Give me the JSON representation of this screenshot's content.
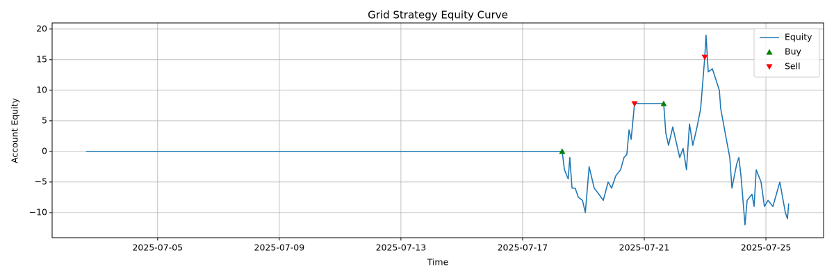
{
  "chart_data": {
    "type": "line",
    "title": "Grid Strategy Equity Curve",
    "xlabel": "Time",
    "ylabel": "Account Equity",
    "x": [
      "2025-07-02 15:30",
      "2025-07-18 07:15",
      "2025-07-18 09:00",
      "2025-07-18 12:00",
      "2025-07-18 13:15",
      "2025-07-18 15:00",
      "2025-07-18 17:30",
      "2025-07-18 20:00",
      "2025-07-18 23:15",
      "2025-07-19 01:30",
      "2025-07-19 04:30",
      "2025-07-19 08:30",
      "2025-07-19 12:15",
      "2025-07-19 15:40",
      "2025-07-19 19:30",
      "2025-07-19 22:15",
      "2025-07-20 01:30",
      "2025-07-20 05:20",
      "2025-07-20 08:00",
      "2025-07-20 10:15",
      "2025-07-20 12:00",
      "2025-07-20 13:40",
      "2025-07-20 16:20",
      "2025-07-21 15:20",
      "2025-07-21 17:00",
      "2025-07-21 19:10",
      "2025-07-21 22:30",
      "2025-07-22 00:40",
      "2025-07-22 04:00",
      "2025-07-22 06:40",
      "2025-07-22 09:20",
      "2025-07-22 11:40",
      "2025-07-22 14:20",
      "2025-07-22 17:40",
      "2025-07-22 20:30",
      "2025-07-22 23:45",
      "2025-07-23 00:45",
      "2025-07-23 02:30",
      "2025-07-23 05:45",
      "2025-07-23 11:15",
      "2025-07-23 12:20",
      "2025-07-23 16:45",
      "2025-07-23 19:30",
      "2025-07-23 21:10",
      "2025-07-24 01:00",
      "2025-07-24 02:40",
      "2025-07-24 04:20",
      "2025-07-24 07:30",
      "2025-07-24 09:10",
      "2025-07-24 13:00",
      "2025-07-24 14:40",
      "2025-07-24 16:20",
      "2025-07-24 20:10",
      "2025-07-24 22:50",
      "2025-07-25 01:40",
      "2025-07-25 05:30",
      "2025-07-25 11:00",
      "2025-07-25 15:20",
      "2025-07-25 17:00",
      "2025-07-25 18:00"
    ],
    "series": [
      {
        "name": "Equity",
        "color": "#1f77b4",
        "values": [
          0,
          0,
          -3,
          -4.5,
          -1,
          -6,
          -6,
          -7.5,
          -8,
          -10,
          -2.5,
          -6,
          -7,
          -8,
          -5,
          -6,
          -4,
          -3,
          -1,
          -0.5,
          3.5,
          2,
          7.8,
          7.8,
          3,
          1,
          4,
          2,
          -1,
          0.5,
          -3,
          4.5,
          1,
          4,
          7,
          15.4,
          19,
          13,
          13.5,
          10,
          7,
          2,
          -1,
          -6,
          -2,
          -1,
          -4,
          -12,
          -8,
          -7,
          -9,
          -3,
          -5,
          -9,
          -8,
          -9,
          -5,
          -10,
          -11,
          -8.5
        ]
      },
      {
        "name": "Buy",
        "color": "#008000",
        "marker": "triangle-up",
        "x": [
          "2025-07-18 07:15",
          "2025-07-21 15:20"
        ],
        "values": [
          0,
          7.8
        ]
      },
      {
        "name": "Sell",
        "color": "#ff0000",
        "marker": "triangle-down",
        "x": [
          "2025-07-20 16:20",
          "2025-07-22 23:45"
        ],
        "values": [
          7.8,
          15.4
        ]
      }
    ],
    "xlim": [
      "2025-07-01 12:45",
      "2025-07-26 21:30"
    ],
    "xticks": [
      "2025-07-05",
      "2025-07-09",
      "2025-07-13",
      "2025-07-17",
      "2025-07-21",
      "2025-07-25"
    ],
    "ylim": [
      -14.1,
      21.0
    ],
    "yticks": [
      {
        "value": -10,
        "label": "−10"
      },
      {
        "value": -5,
        "label": "−5"
      },
      0,
      5,
      10,
      15,
      20
    ],
    "grid": true,
    "legend": "upper right"
  }
}
